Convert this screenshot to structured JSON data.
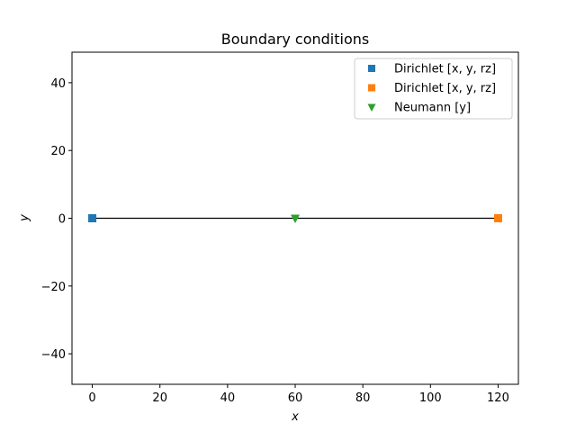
{
  "chart_data": {
    "type": "scatter",
    "title": "Boundary conditions",
    "xlabel": "x",
    "ylabel": "y",
    "xlim": [
      -6,
      126
    ],
    "ylim": [
      -49,
      49
    ],
    "xticks": [
      0,
      20,
      40,
      60,
      80,
      100,
      120
    ],
    "yticks": [
      -40,
      -20,
      0,
      20,
      40
    ],
    "xtick_labels": [
      "0",
      "20",
      "40",
      "60",
      "80",
      "100",
      "120"
    ],
    "ytick_labels": [
      "−40",
      "−20",
      "0",
      "20",
      "40"
    ],
    "grid": false,
    "legend_position": "top-right",
    "line": {
      "x": [
        0,
        120
      ],
      "y": [
        0,
        0
      ],
      "color": "#000000"
    },
    "series": [
      {
        "name": "Dirichlet  [x, y, rz]",
        "marker": "square",
        "color": "#1f77b4",
        "x": [
          0
        ],
        "y": [
          0
        ]
      },
      {
        "name": "Dirichlet  [x, y, rz]",
        "marker": "square",
        "color": "#ff7f0e",
        "x": [
          120
        ],
        "y": [
          0
        ]
      },
      {
        "name": "Neumann  [y]",
        "marker": "triangle-down",
        "color": "#2ca02c",
        "x": [
          60
        ],
        "y": [
          0
        ]
      }
    ]
  }
}
